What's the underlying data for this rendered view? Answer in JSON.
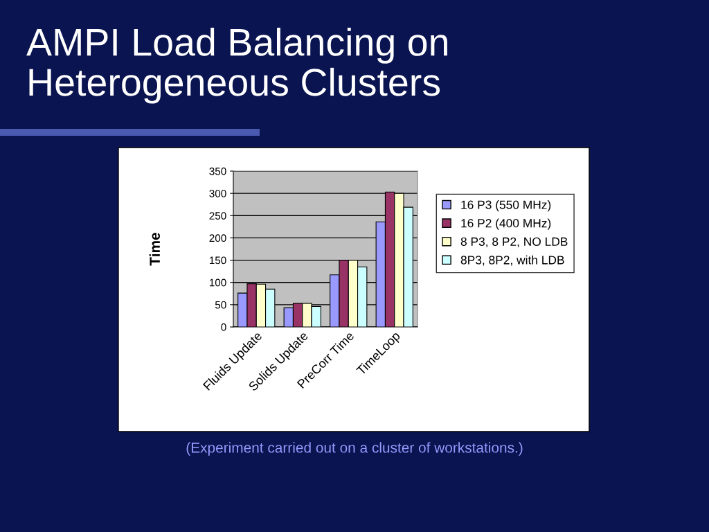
{
  "chart_data": {
    "type": "bar",
    "title": "AMPI Load Balancing on Heterogeneous Clusters",
    "ylabel": "Time",
    "categories": [
      "Fluids Update",
      "Solids Update",
      "PreCorr Time",
      "TimeLoop"
    ],
    "series": [
      {
        "name": "16 P3 (550 MHz)",
        "color": "#9999ff",
        "values": [
          76,
          43,
          117,
          236
        ]
      },
      {
        "name": "16 P2 (400 MHz)",
        "color": "#993366",
        "values": [
          97,
          53,
          150,
          303
        ]
      },
      {
        "name": "8 P3, 8 P2, NO LDB",
        "color": "#ffffcc",
        "values": [
          96,
          53,
          150,
          300
        ]
      },
      {
        "name": "8P3, 8P2, with LDB",
        "color": "#ccffff",
        "values": [
          85,
          46,
          135,
          269
        ]
      }
    ],
    "ylim": [
      0,
      350
    ],
    "yticks": [
      0,
      50,
      100,
      150,
      200,
      250,
      300,
      350
    ],
    "grid": "y",
    "legend": "right",
    "annotations": [
      "(Experiment carried out on a cluster of workstations.)"
    ]
  }
}
